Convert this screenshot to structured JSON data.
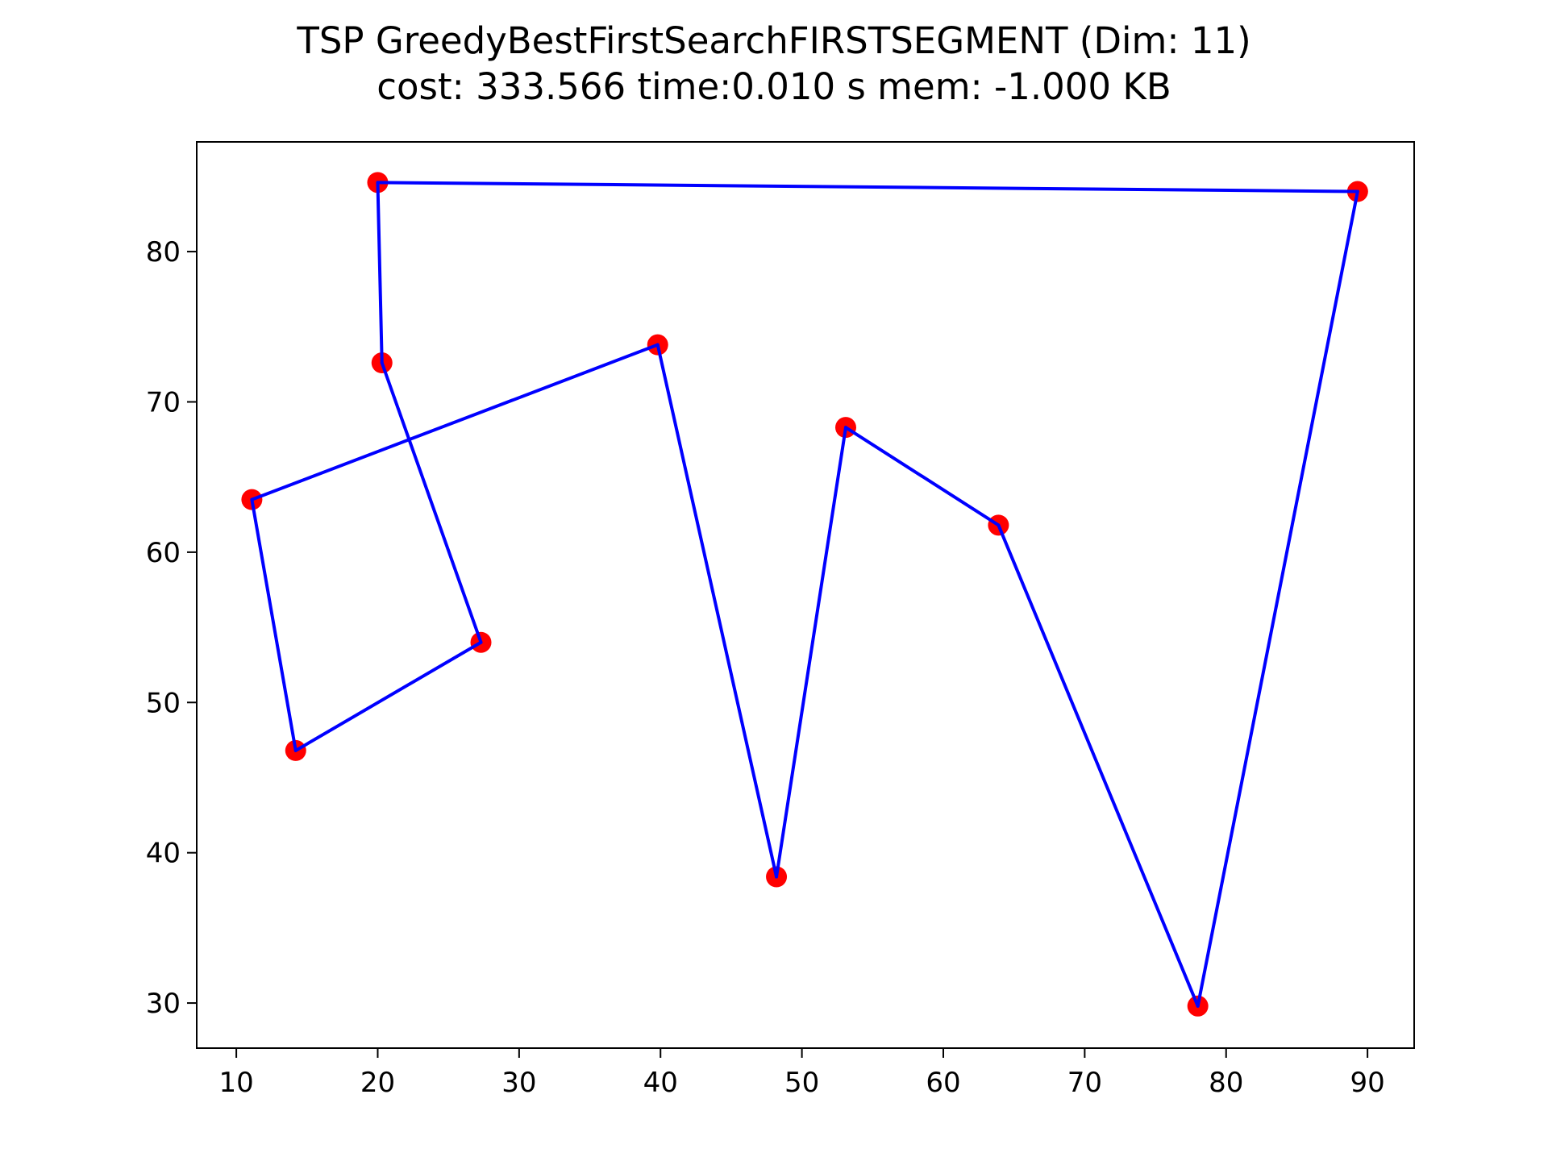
{
  "chart_data": {
    "type": "line",
    "title": "TSP GreedyBestFirstSearchFIRSTSEGMENT (Dim: 11)",
    "subtitle": "cost: 333.566   time:0.010 s   mem: -1.000 KB",
    "xlabel": "",
    "ylabel": "",
    "xlim": [
      7.2,
      93.3
    ],
    "ylim": [
      27.0,
      87.3
    ],
    "x_ticks": [
      10,
      20,
      30,
      40,
      50,
      60,
      70,
      80,
      90
    ],
    "y_ticks": [
      30,
      40,
      50,
      60,
      70,
      80
    ],
    "grid": false,
    "colors": {
      "route": "#0000ff",
      "nodes": "#ff0000",
      "axes": "#000000"
    },
    "series": [
      {
        "x": [
          20.0,
          89.3,
          78.0,
          63.9,
          53.1,
          48.2,
          39.8,
          11.1,
          14.2,
          27.3,
          20.3
        ],
        "y": [
          84.6,
          84.0,
          29.8,
          61.8,
          68.3,
          38.4,
          73.8,
          63.5,
          46.8,
          54.0,
          72.6
        ]
      }
    ]
  }
}
